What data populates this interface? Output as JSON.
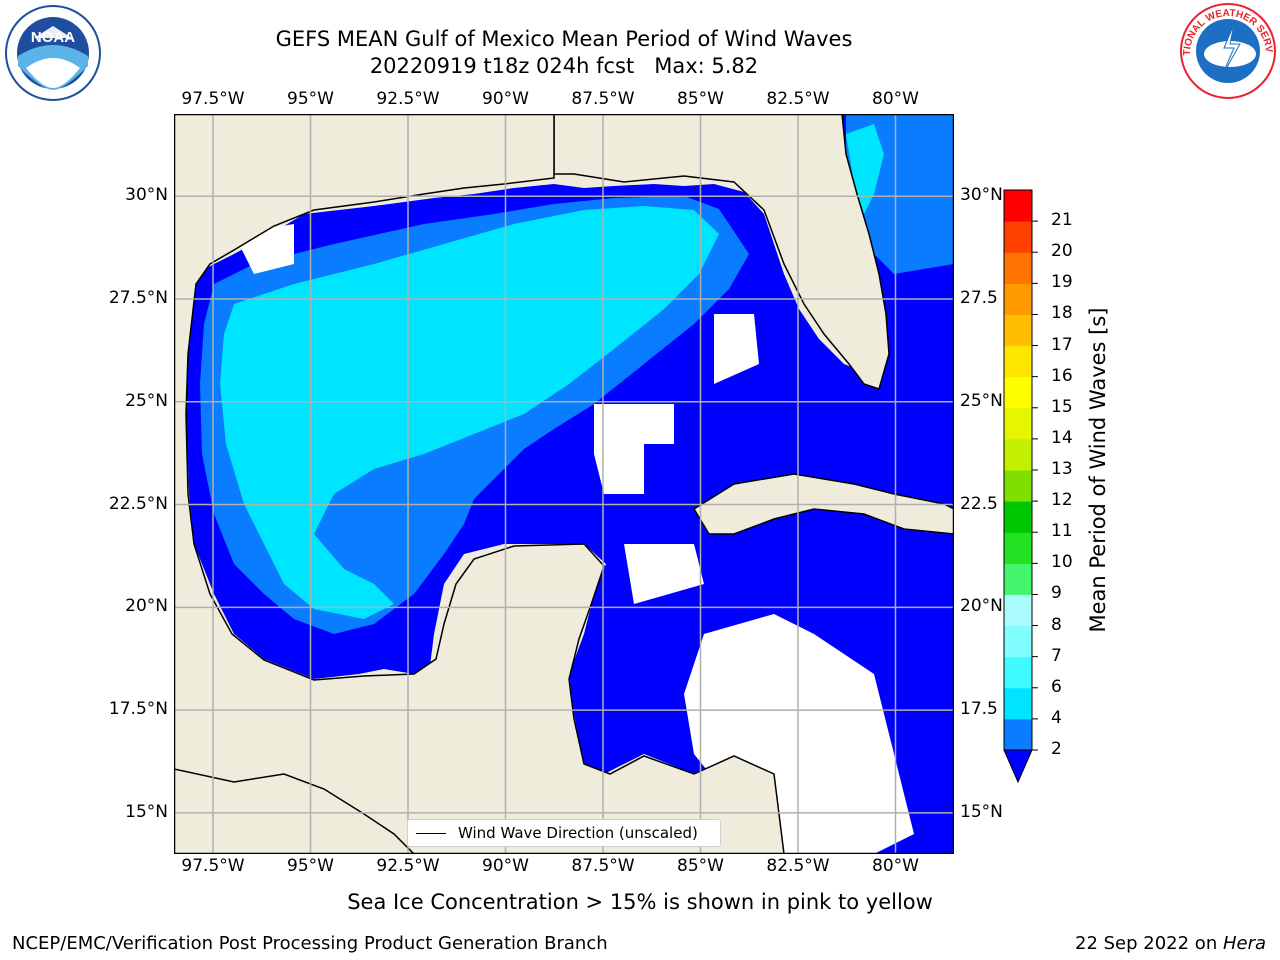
{
  "header": {
    "title_line1": "GEFS MEAN Gulf of Mexico Mean Period of Wind Waves",
    "title_line2": "20220919 t18z 024h fcst   Max: 5.82"
  },
  "logos": {
    "left": {
      "name": "noaa-logo",
      "text": "NOAA",
      "ring_text": "NATIONAL OCEANIC AND ATMOSPHERIC ADMINISTRATION · U.S. DEPARTMENT OF COMMERCE",
      "color": "#1f4e9e"
    },
    "right": {
      "name": "nws-logo",
      "ring_text": "NATIONAL WEATHER SERVICE",
      "color": "#e8242c"
    }
  },
  "map": {
    "lon_range": [
      -98.5,
      -78.5
    ],
    "lat_range": [
      14,
      32
    ],
    "grid_lon": [
      -97.5,
      -95,
      -92.5,
      -90,
      -87.5,
      -85,
      -82.5,
      -80
    ],
    "grid_lat": [
      15,
      17.5,
      20,
      22.5,
      25,
      27.5,
      30
    ],
    "top_labels": [
      "97.5°W",
      "95°W",
      "92.5°W",
      "90°W",
      "87.5°W",
      "85°W",
      "82.5°W",
      "80°W"
    ],
    "bottom_labels": [
      "97.5°W",
      "95°W",
      "92.5°W",
      "90°W",
      "87.5°W",
      "85°W",
      "82.5°W",
      "80°W"
    ],
    "left_labels": [
      "15°N",
      "17.5°N",
      "20°N",
      "22.5°N",
      "25°N",
      "27.5°N",
      "30°N"
    ],
    "right_labels": [
      "15°N",
      "17.5",
      "20°N",
      "22.5",
      "25°N",
      "27.5",
      "30°N"
    ],
    "land_color": "#efecdc",
    "vector_color": "#ff0000",
    "legend_label": "Wind Wave Direction (unscaled)"
  },
  "colorbar": {
    "title": "Mean Period of Wind Waves [s]",
    "ticks": [
      "2",
      "4",
      "6",
      "7",
      "8",
      "9",
      "10",
      "11",
      "12",
      "13",
      "14",
      "15",
      "16",
      "17",
      "18",
      "19",
      "20",
      "21"
    ],
    "colors": [
      "#0a7cff",
      "#00e5ff",
      "#3ffbff",
      "#7ffdff",
      "#aafcff",
      "#42f56c",
      "#22e022",
      "#00c800",
      "#7fe000",
      "#c2f000",
      "#e6f500",
      "#ffff00",
      "#ffe600",
      "#ffbf00",
      "#ff9900",
      "#ff7300",
      "#ff4000",
      "#ff0000"
    ],
    "extend_color": "#0000ff"
  },
  "footer": {
    "note": "Sea Ice Concentration > 15% is shown in pink to yellow",
    "left": "NCEP/EMC/Verification Post Processing Product Generation Branch",
    "right_prefix": "22 Sep 2022 on ",
    "right_host": "Hera"
  }
}
